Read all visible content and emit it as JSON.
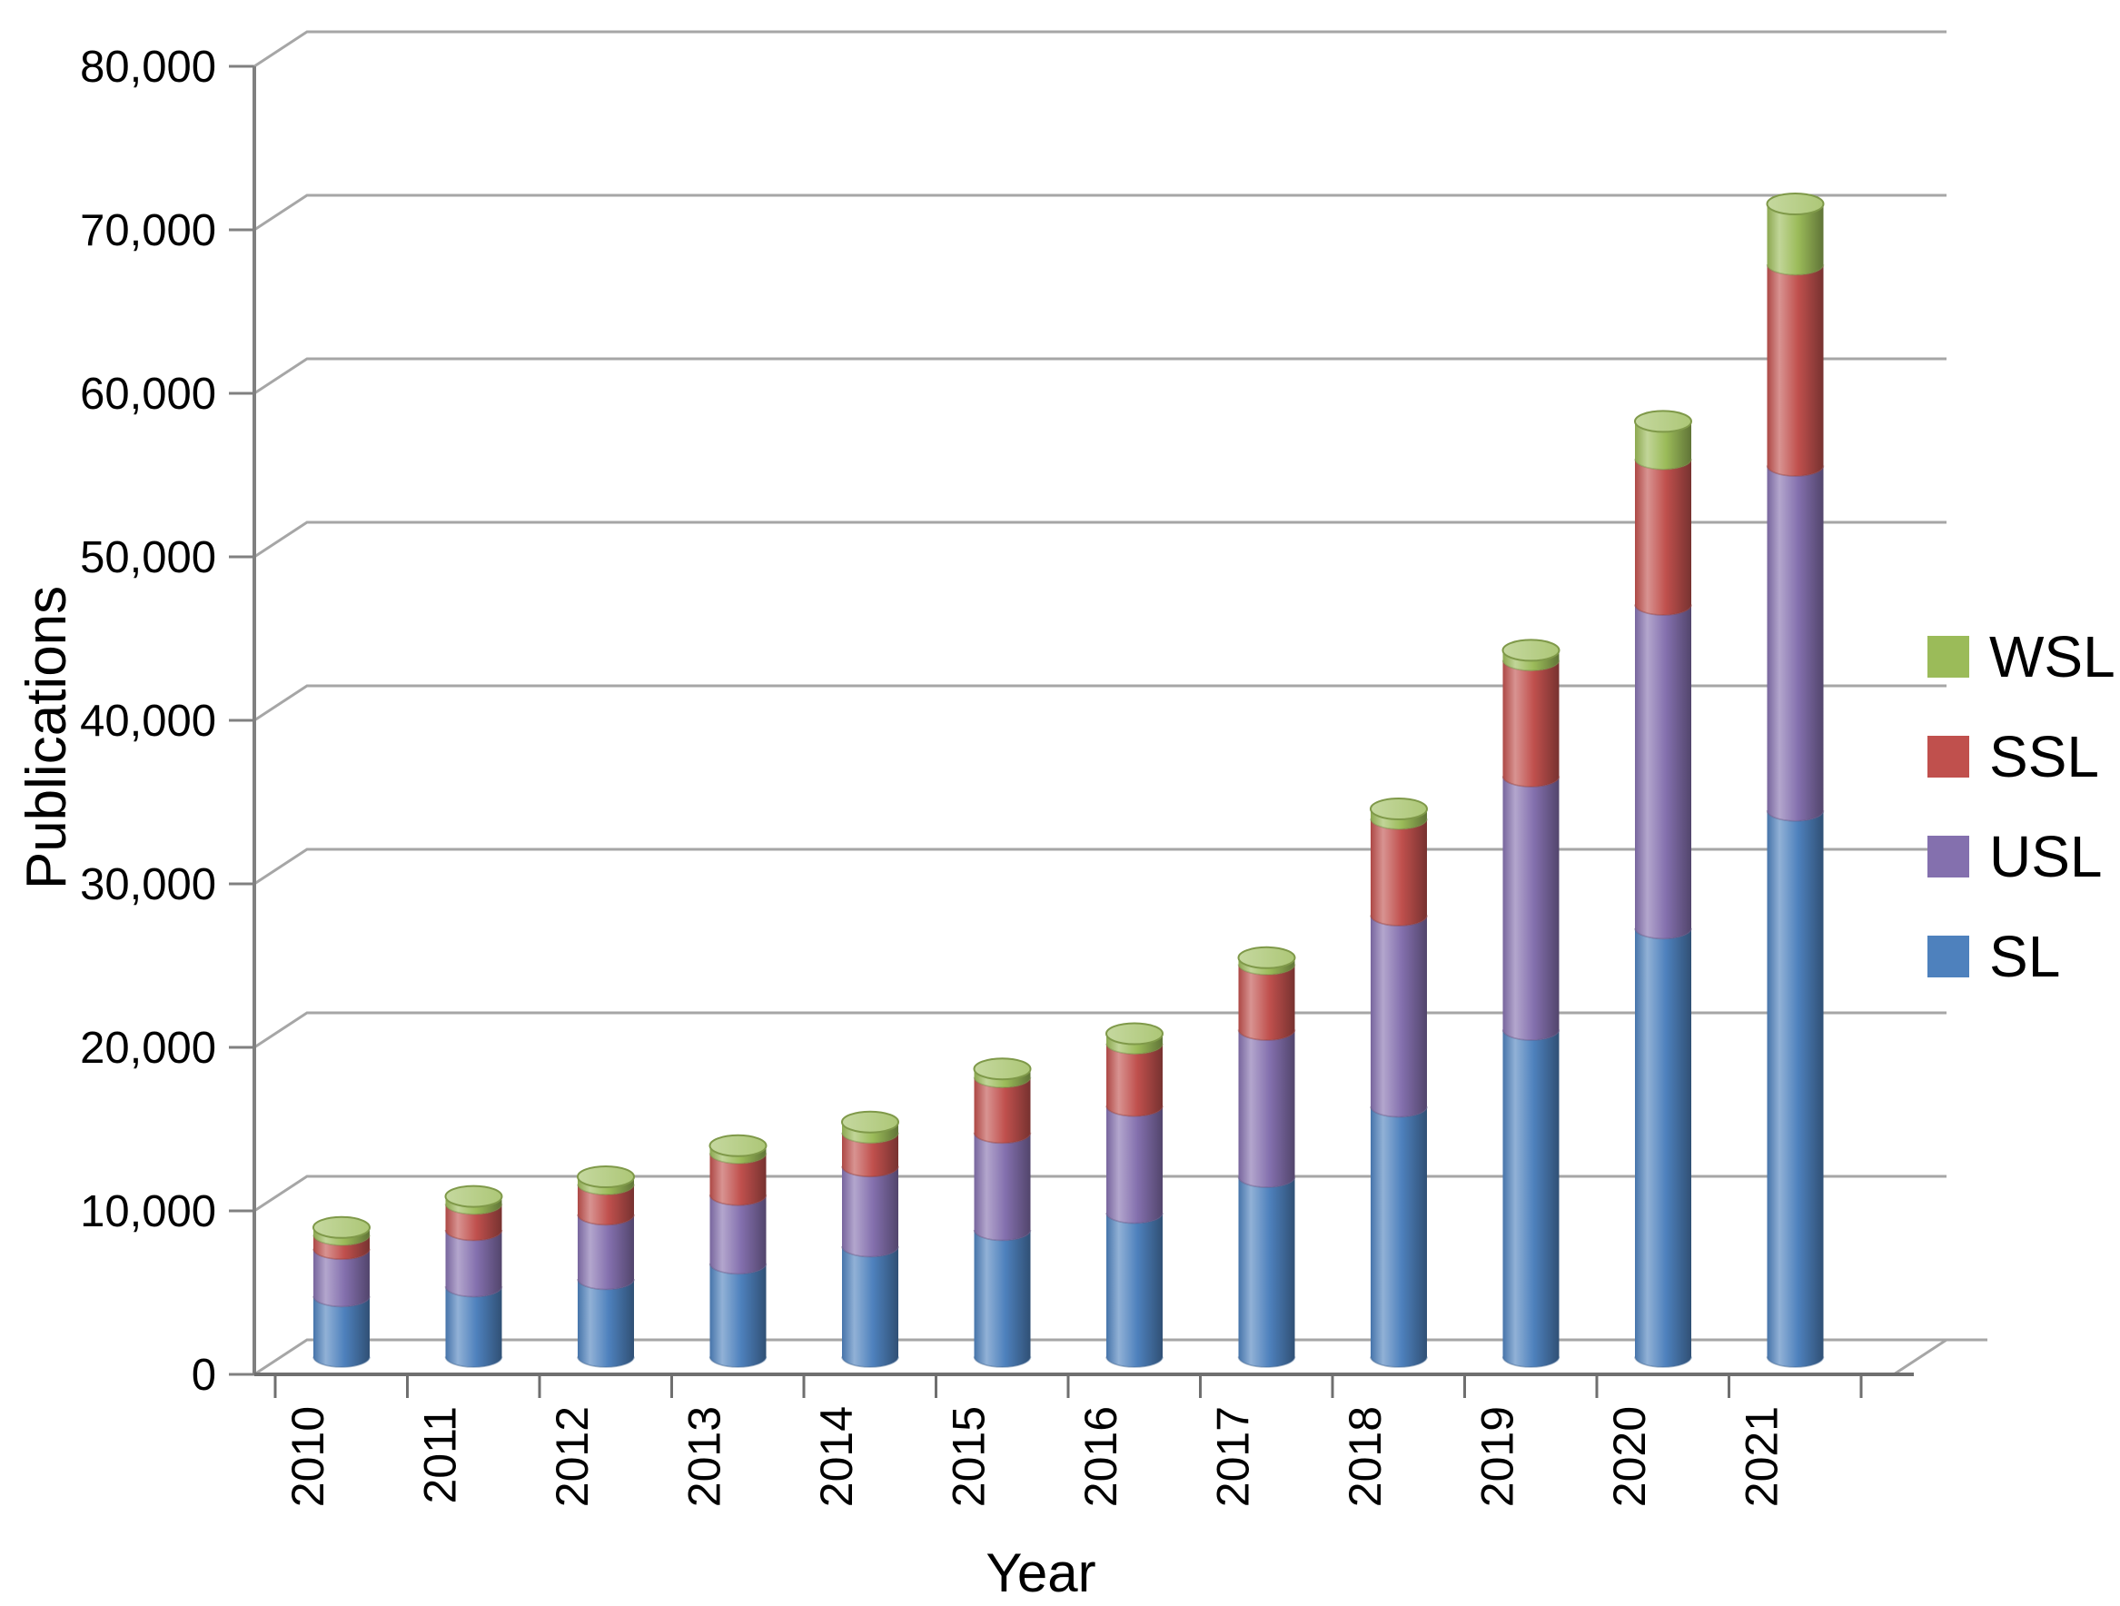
{
  "chart_data": {
    "type": "bar",
    "variant": "stacked-cylinder-3d",
    "title": "",
    "xlabel": "Year",
    "ylabel": "Publications",
    "categories": [
      "2010",
      "2011",
      "2012",
      "2013",
      "2014",
      "2015",
      "2016",
      "2017",
      "2018",
      "2019",
      "2020",
      "2021"
    ],
    "series": [
      {
        "name": "SL",
        "color": "#4e81bd",
        "values": [
          3700,
          4300,
          4750,
          5700,
          6750,
          7750,
          8800,
          11000,
          15300,
          20000,
          26200,
          33400
        ]
      },
      {
        "name": "USL",
        "color": "#8470ae",
        "values": [
          2900,
          3450,
          3950,
          4200,
          4900,
          5950,
          6550,
          9000,
          11700,
          15500,
          19800,
          21100
        ]
      },
      {
        "name": "SSL",
        "color": "#c0504d",
        "values": [
          850,
          1600,
          1850,
          2550,
          2050,
          3400,
          3800,
          4000,
          5900,
          7100,
          8900,
          12300
        ]
      },
      {
        "name": "WSL",
        "color": "#9bbb59",
        "values": [
          450,
          450,
          450,
          450,
          650,
          500,
          600,
          400,
          600,
          600,
          2300,
          3700
        ]
      }
    ],
    "stack_order_bottom_to_top": [
      "SL",
      "USL",
      "SSL",
      "WSL"
    ],
    "ylim": [
      0,
      80000
    ],
    "ytick_step": 10000,
    "ytick_labels": [
      "0",
      "10,000",
      "20,000",
      "30,000",
      "40,000",
      "50,000",
      "60,000",
      "70,000",
      "80,000"
    ],
    "grid": true,
    "legend_position": "right"
  },
  "legend": {
    "items": [
      {
        "label": "WSL",
        "color": "#9bbb59"
      },
      {
        "label": "SSL",
        "color": "#c0504d"
      },
      {
        "label": "USL",
        "color": "#8470ae"
      },
      {
        "label": "SL",
        "color": "#4e81bd"
      }
    ]
  },
  "axes": {
    "y_title": "Publications",
    "x_title": "Year"
  },
  "colors": {
    "gridline": "#a6a6a6",
    "axis": "#808080",
    "text": "#000000",
    "background": "#ffffff"
  }
}
